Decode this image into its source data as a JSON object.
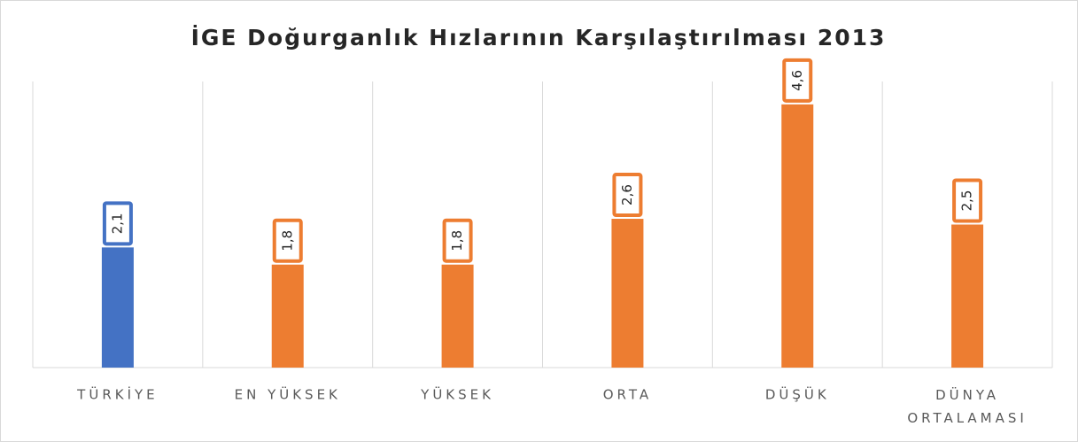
{
  "chart_data": {
    "type": "bar",
    "title": "İGE Doğurganlık Hızlarının Karşılaştırılması 2013",
    "categories": [
      "TÜRKİYE",
      "EN YÜKSEK",
      "YÜKSEK",
      "ORTA",
      "DÜŞÜK",
      "DÜNYA ORTALAMASI"
    ],
    "values": [
      2.1,
      1.8,
      1.8,
      2.6,
      4.6,
      2.5
    ],
    "value_labels": [
      "2,1",
      "1,8",
      "1,8",
      "2,6",
      "4,6",
      "2,5"
    ],
    "colors": [
      "#4472c4",
      "#ed7d31",
      "#ed7d31",
      "#ed7d31",
      "#ed7d31",
      "#ed7d31"
    ],
    "ylim": [
      0,
      5
    ]
  }
}
